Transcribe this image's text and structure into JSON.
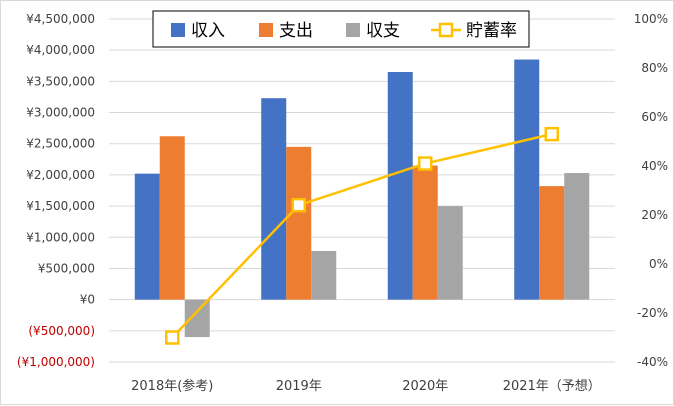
{
  "chart_data": {
    "type": "bar",
    "categories": [
      "2018年(参考)",
      "2019年",
      "2020年",
      "2021年（予想）"
    ],
    "series": [
      {
        "name": "収入",
        "type": "bar",
        "axis": "left",
        "color": "#4472c4",
        "values": [
          2020000,
          3230000,
          3650000,
          3850000
        ]
      },
      {
        "name": "支出",
        "type": "bar",
        "axis": "left",
        "color": "#ed7d31",
        "values": [
          2620000,
          2450000,
          2150000,
          1820000
        ]
      },
      {
        "name": "収支",
        "type": "bar",
        "axis": "left",
        "color": "#a5a5a5",
        "values": [
          -600000,
          780000,
          1500000,
          2030000
        ]
      },
      {
        "name": "貯蓄率",
        "type": "line",
        "axis": "right",
        "color": "#ffc000",
        "values": [
          -0.3,
          0.24,
          0.41,
          0.53
        ]
      }
    ],
    "left_axis": {
      "min": -1000000,
      "max": 4500000,
      "step": 500000,
      "tick_labels": [
        "(¥1,000,000)",
        "(¥500,000)",
        "¥0",
        "¥500,000",
        "¥1,000,000",
        "¥1,500,000",
        "¥2,000,000",
        "¥2,500,000",
        "¥3,000,000",
        "¥3,500,000",
        "¥4,000,000",
        "¥4,500,000"
      ],
      "negative_color": "#c00000"
    },
    "right_axis": {
      "min": -0.4,
      "max": 1.0,
      "step": 0.2,
      "tick_labels": [
        "-40%",
        "-20%",
        "0%",
        "20%",
        "40%",
        "60%",
        "80%",
        "100%"
      ]
    },
    "legend_position": "top",
    "grid": true
  }
}
